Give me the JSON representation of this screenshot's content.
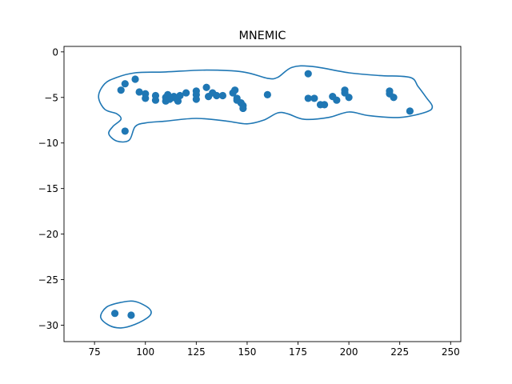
{
  "chart_data": {
    "type": "scatter",
    "title": "MNEMIC",
    "xlabel": "",
    "ylabel": "",
    "xlim": [
      60,
      255
    ],
    "ylim": [
      -31.8,
      0.6
    ],
    "xticks": [
      75,
      100,
      125,
      150,
      175,
      200,
      225,
      250
    ],
    "yticks": [
      0,
      -5,
      -10,
      -15,
      -20,
      -25,
      -30
    ],
    "grid": false,
    "colors": {
      "points": "#1f77b4",
      "contour": "#1f77b4",
      "axes": "#000000"
    },
    "points": [
      {
        "x": 88,
        "y": -4.2
      },
      {
        "x": 90,
        "y": -3.5
      },
      {
        "x": 95,
        "y": -3.0
      },
      {
        "x": 97,
        "y": -4.4
      },
      {
        "x": 100,
        "y": -4.6
      },
      {
        "x": 100,
        "y": -5.1
      },
      {
        "x": 105,
        "y": -4.8
      },
      {
        "x": 105,
        "y": -5.3
      },
      {
        "x": 110,
        "y": -5.0
      },
      {
        "x": 110,
        "y": -5.4
      },
      {
        "x": 111,
        "y": -4.7
      },
      {
        "x": 112,
        "y": -5.2
      },
      {
        "x": 114,
        "y": -4.9
      },
      {
        "x": 115,
        "y": -5.1
      },
      {
        "x": 116,
        "y": -5.4
      },
      {
        "x": 117,
        "y": -4.8
      },
      {
        "x": 120,
        "y": -4.5
      },
      {
        "x": 125,
        "y": -4.3
      },
      {
        "x": 125,
        "y": -4.7
      },
      {
        "x": 125,
        "y": -5.2
      },
      {
        "x": 130,
        "y": -3.9
      },
      {
        "x": 131,
        "y": -4.9
      },
      {
        "x": 133,
        "y": -4.5
      },
      {
        "x": 135,
        "y": -4.8
      },
      {
        "x": 138,
        "y": -4.8
      },
      {
        "x": 143,
        "y": -4.5
      },
      {
        "x": 144,
        "y": -4.2
      },
      {
        "x": 145,
        "y": -5.1
      },
      {
        "x": 145,
        "y": -5.3
      },
      {
        "x": 147,
        "y": -5.6
      },
      {
        "x": 148,
        "y": -5.9
      },
      {
        "x": 148,
        "y": -6.2
      },
      {
        "x": 160,
        "y": -4.7
      },
      {
        "x": 180,
        "y": -2.4
      },
      {
        "x": 180,
        "y": -5.1
      },
      {
        "x": 183,
        "y": -5.1
      },
      {
        "x": 186,
        "y": -5.8
      },
      {
        "x": 188,
        "y": -5.8
      },
      {
        "x": 192,
        "y": -4.9
      },
      {
        "x": 194,
        "y": -5.3
      },
      {
        "x": 198,
        "y": -4.2
      },
      {
        "x": 198,
        "y": -4.5
      },
      {
        "x": 200,
        "y": -5.0
      },
      {
        "x": 220,
        "y": -4.3
      },
      {
        "x": 220,
        "y": -4.6
      },
      {
        "x": 222,
        "y": -5.0
      },
      {
        "x": 230,
        "y": -6.5
      },
      {
        "x": 90,
        "y": -8.7
      },
      {
        "x": 85,
        "y": -28.7
      },
      {
        "x": 93,
        "y": -28.9
      }
    ],
    "contours": [
      {
        "closed": true,
        "path": [
          [
            86,
            -2.8
          ],
          [
            95,
            -2.3
          ],
          [
            110,
            -2.2
          ],
          [
            130,
            -2.0
          ],
          [
            148,
            -2.2
          ],
          [
            160,
            -2.9
          ],
          [
            165,
            -2.8
          ],
          [
            172,
            -1.7
          ],
          [
            182,
            -1.6
          ],
          [
            200,
            -2.3
          ],
          [
            215,
            -2.6
          ],
          [
            230,
            -2.8
          ],
          [
            234,
            -3.8
          ],
          [
            238,
            -5.0
          ],
          [
            241,
            -6.0
          ],
          [
            238,
            -6.6
          ],
          [
            225,
            -7.2
          ],
          [
            210,
            -7.0
          ],
          [
            200,
            -6.6
          ],
          [
            190,
            -7.2
          ],
          [
            178,
            -7.4
          ],
          [
            170,
            -6.8
          ],
          [
            165,
            -6.7
          ],
          [
            158,
            -7.5
          ],
          [
            150,
            -7.9
          ],
          [
            140,
            -7.6
          ],
          [
            125,
            -7.3
          ],
          [
            110,
            -7.6
          ],
          [
            100,
            -7.8
          ],
          [
            95,
            -8.2
          ],
          [
            92,
            -9.7
          ],
          [
            86,
            -9.8
          ],
          [
            82,
            -9.0
          ],
          [
            84,
            -8.2
          ],
          [
            88,
            -7.4
          ],
          [
            86,
            -6.8
          ],
          [
            80,
            -6.3
          ],
          [
            77,
            -4.9
          ],
          [
            80,
            -3.5
          ]
        ]
      },
      {
        "closed": true,
        "path": [
          [
            88,
            -27.5
          ],
          [
            95,
            -27.4
          ],
          [
            102,
            -28.2
          ],
          [
            102,
            -29.0
          ],
          [
            95,
            -29.9
          ],
          [
            88,
            -30.3
          ],
          [
            82,
            -30.0
          ],
          [
            78,
            -29.1
          ],
          [
            81,
            -28.0
          ]
        ]
      }
    ]
  }
}
